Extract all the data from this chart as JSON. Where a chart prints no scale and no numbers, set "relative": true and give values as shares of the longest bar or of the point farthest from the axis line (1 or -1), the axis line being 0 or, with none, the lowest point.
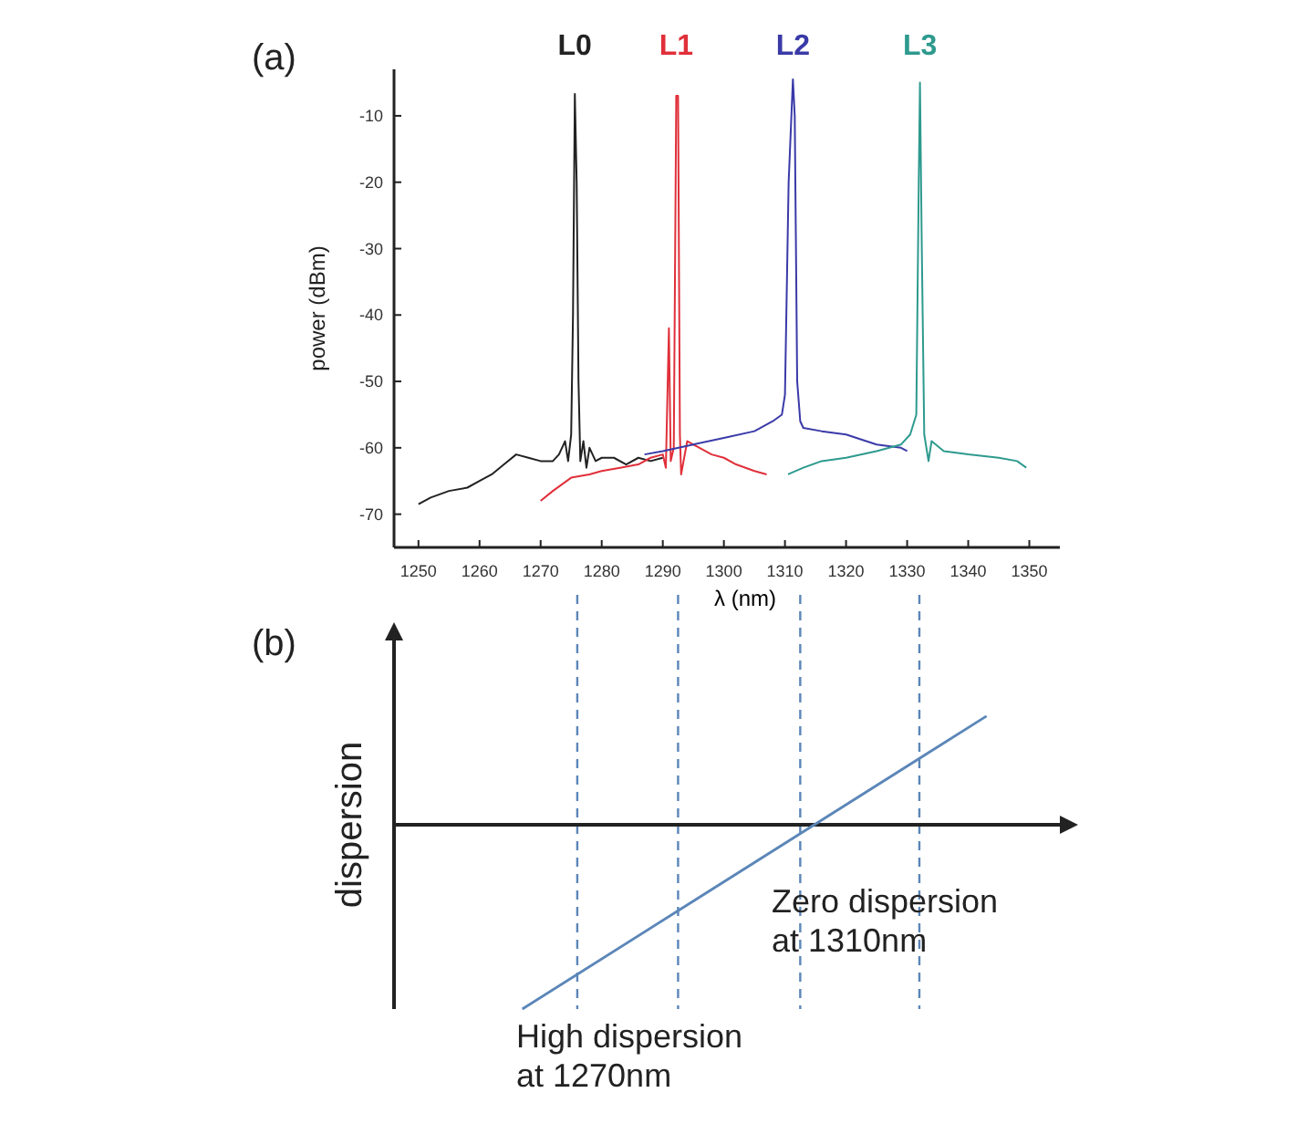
{
  "chart_data": [
    {
      "type": "line",
      "title": "(a)",
      "xlabel": "λ (nm)",
      "ylabel": "power (dBm)",
      "xlim": [
        1246,
        1355
      ],
      "ylim": [
        -75,
        -3
      ],
      "xticks": [
        1250,
        1260,
        1270,
        1280,
        1290,
        1300,
        1310,
        1320,
        1330,
        1340,
        1350
      ],
      "yticks": [
        -10,
        -20,
        -30,
        -40,
        -50,
        -60,
        -70
      ],
      "series": [
        {
          "name": "L0",
          "color": "#222222",
          "x": [
            1250,
            1252,
            1255,
            1258,
            1260,
            1262,
            1264,
            1266,
            1268,
            1270,
            1272,
            1273,
            1274,
            1274.5,
            1275,
            1275.3,
            1275.6,
            1275.9,
            1276.2,
            1276.5,
            1277,
            1277.5,
            1278,
            1279,
            1280,
            1282,
            1284,
            1286,
            1288,
            1290
          ],
          "values": [
            -68.5,
            -67.5,
            -66.5,
            -66,
            -65,
            -64,
            -62.5,
            -61,
            -61.5,
            -62,
            -62,
            -61,
            -59,
            -62,
            -58,
            -40,
            -6.7,
            -20,
            -50,
            -62,
            -59,
            -63,
            -60,
            -62,
            -61.5,
            -61.5,
            -62.5,
            -61.5,
            -62,
            -61.5
          ]
        },
        {
          "name": "L1",
          "color": "#e0303a",
          "x": [
            1270,
            1272,
            1275,
            1278,
            1280,
            1283,
            1286,
            1288,
            1290,
            1290.5,
            1291,
            1291.3,
            1291.8,
            1292.2,
            1292.5,
            1292.8,
            1293,
            1294,
            1296,
            1298,
            1300,
            1302,
            1305,
            1307
          ],
          "values": [
            -68,
            -66.5,
            -64.5,
            -64,
            -63.5,
            -63,
            -62.5,
            -61.5,
            -61,
            -63,
            -42,
            -62,
            -60,
            -7,
            -7,
            -58,
            -64,
            -59,
            -60,
            -61,
            -61.5,
            -62.5,
            -63.5,
            -64
          ]
        },
        {
          "name": "L2",
          "color": "#3a3aa8",
          "x": [
            1287,
            1290,
            1295,
            1300,
            1305,
            1308,
            1309.5,
            1310,
            1310.6,
            1311.3,
            1311.6,
            1312,
            1312.5,
            1313,
            1316,
            1320,
            1325,
            1329,
            1330
          ],
          "values": [
            -61,
            -60.5,
            -59.5,
            -58.5,
            -57.5,
            -56,
            -55,
            -52,
            -20,
            -4.5,
            -10,
            -50,
            -56,
            -57,
            -57.5,
            -58,
            -59.5,
            -60,
            -60.5
          ]
        },
        {
          "name": "L3",
          "color": "#2e9a8e",
          "x": [
            1310.5,
            1313,
            1316,
            1320,
            1325,
            1329,
            1330.5,
            1331.5,
            1331.9,
            1332.1,
            1332.4,
            1332.8,
            1333.5,
            1334,
            1336,
            1340,
            1345,
            1348,
            1349.5
          ],
          "values": [
            -64,
            -63,
            -62,
            -61.5,
            -60.5,
            -59.5,
            -58,
            -55,
            -20,
            -5,
            -30,
            -58,
            -62,
            -59,
            -60.5,
            -61,
            -61.5,
            -62,
            -63
          ]
        }
      ]
    },
    {
      "type": "line",
      "title": "(b)",
      "ylabel": "dispersion",
      "relative": true,
      "xlim": [
        1246,
        1355
      ],
      "series": [
        {
          "color": "#5b86b8",
          "x": [
            1267,
            1343
          ],
          "values": [
            -1,
            0.59
          ]
        }
      ],
      "ref_lines": [
        {
          "axis": "x",
          "value": 1276,
          "color": "#5b86b8",
          "line_style": "dashed"
        },
        {
          "axis": "x",
          "value": 1292.5,
          "color": "#5b86b8",
          "line_style": "dashed"
        },
        {
          "axis": "x",
          "value": 1312.5,
          "color": "#5b86b8",
          "line_style": "dashed"
        },
        {
          "axis": "x",
          "value": 1332,
          "color": "#5b86b8",
          "line_style": "dashed"
        }
      ],
      "annotations": [
        "Zero dispersion\nat 1310nm",
        "High dispersion\nat 1270nm"
      ]
    }
  ]
}
